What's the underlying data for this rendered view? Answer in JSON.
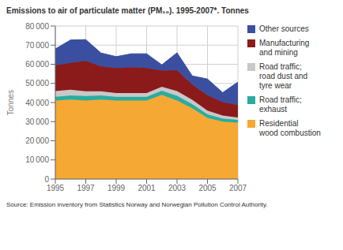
{
  "chart_data": {
    "type": "area",
    "stacked": true,
    "title": "Emissions to air of particulate matter (PM₁₀). 1995-2007*. Tonnes",
    "ylabel": "Tonnes",
    "annotations": [
      "Source: Emission inventory from Statistics Norway and Norwegian Pollution Control Authority."
    ],
    "x": [
      1995,
      1996,
      1997,
      1998,
      1999,
      2000,
      2001,
      2002,
      2003,
      2004,
      2005,
      2006,
      2007
    ],
    "series": [
      {
        "name": "Residential\nwood combustion",
        "color": "#f5a833",
        "values": [
          41000,
          41500,
          41000,
          41500,
          41000,
          41000,
          41000,
          44000,
          41000,
          37000,
          32000,
          30000,
          29500
        ]
      },
      {
        "name": "Road traffic;\nexhaust",
        "color": "#2aaca0",
        "values": [
          2000,
          2200,
          2400,
          2200,
          2000,
          2000,
          2000,
          2200,
          2500,
          2200,
          1800,
          1600,
          1400
        ]
      },
      {
        "name": "Road traffic;\nroad dust and\ntyre wear",
        "color": "#c8c8c8",
        "values": [
          3000,
          3000,
          2500,
          2200,
          2000,
          2000,
          2000,
          2000,
          2500,
          2200,
          2000,
          1600,
          1300
        ]
      },
      {
        "name": "Manufacturing\nand mining",
        "color": "#8b1a1a",
        "values": [
          13500,
          14000,
          16000,
          13000,
          13000,
          13500,
          13000,
          8500,
          11000,
          8000,
          8000,
          7000,
          6500
        ]
      },
      {
        "name": "Other sources",
        "color": "#3a4fa0",
        "values": [
          8500,
          12000,
          11000,
          7000,
          6000,
          7000,
          7500,
          3000,
          9000,
          4500,
          8500,
          5000,
          12000
        ]
      }
    ],
    "xlim": [
      1995,
      2007
    ],
    "xticks": [
      1995,
      1997,
      1999,
      2001,
      2003,
      2005,
      2007
    ],
    "ylim": [
      0,
      80000
    ],
    "yticks": [
      0,
      {
        "value": 10000,
        "label": "10 000"
      },
      {
        "value": 20000,
        "label": "20 000"
      },
      {
        "value": 30000,
        "label": "30 000"
      },
      {
        "value": 40000,
        "label": "40 000"
      },
      {
        "value": 50000,
        "label": "50 000"
      },
      {
        "value": 60000,
        "label": "60 000"
      },
      {
        "value": 70000,
        "label": "70 000"
      },
      {
        "value": 80000,
        "label": "80 000"
      }
    ],
    "grid": true,
    "legend": "right"
  }
}
